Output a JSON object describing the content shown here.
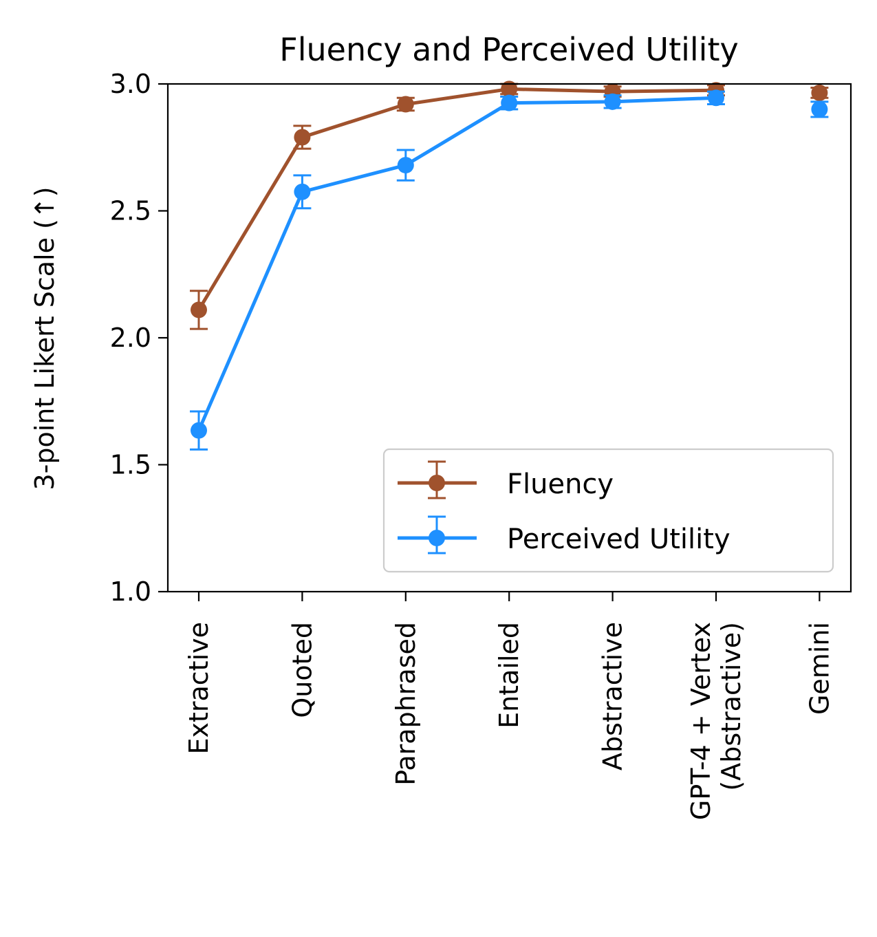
{
  "chart_data": {
    "type": "line",
    "title": "Fluency and Perceived Utility",
    "xlabel": "",
    "ylabel": "3-point Likert Scale (↑)",
    "ylim": [
      1.0,
      3.0
    ],
    "yticks": [
      "1.0",
      "1.5",
      "2.0",
      "2.5",
      "3.0"
    ],
    "categories": [
      "Extractive",
      "Quoted",
      "Paraphrased",
      "Entailed",
      "Abstractive",
      "GPT-4 + Vertex\n(Abstractive)",
      "Gemini"
    ],
    "connected_points": 6,
    "grid": false,
    "legend_position": "lower-right",
    "series": [
      {
        "name": "Fluency",
        "color": "#a0522d",
        "values": [
          2.11,
          2.79,
          2.92,
          2.98,
          2.97,
          2.975,
          2.965
        ],
        "errors": [
          0.075,
          0.045,
          0.025,
          0.02,
          0.02,
          0.02,
          0.02
        ]
      },
      {
        "name": "Perceived Utility",
        "color": "#1e90ff",
        "values": [
          1.635,
          2.575,
          2.68,
          2.925,
          2.93,
          2.945,
          2.9
        ],
        "errors": [
          0.075,
          0.065,
          0.06,
          0.025,
          0.025,
          0.025,
          0.03
        ]
      }
    ]
  }
}
